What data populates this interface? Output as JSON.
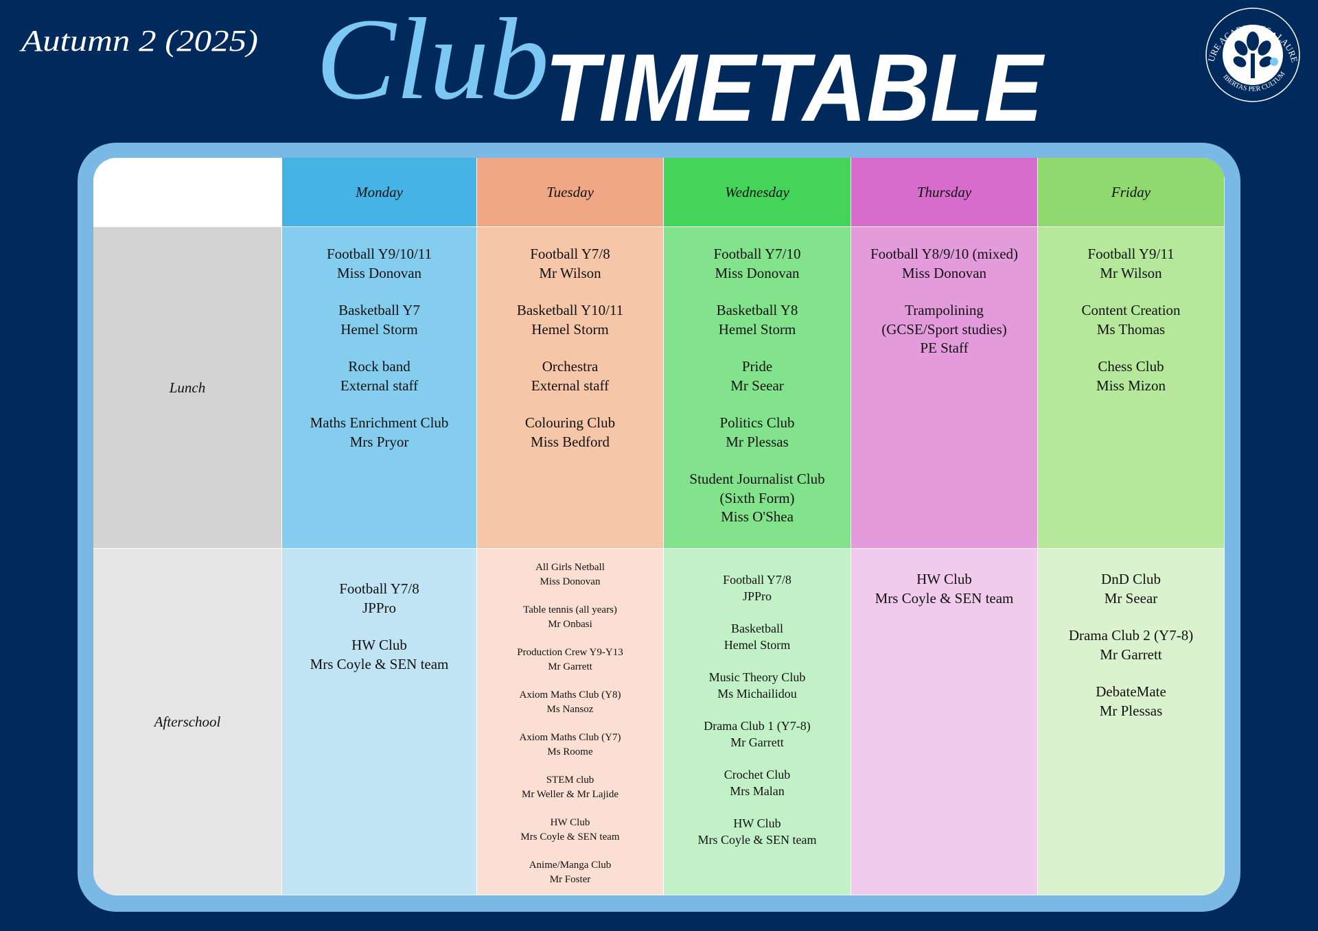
{
  "header": {
    "term": "Autumn 2 (2025)",
    "title_script": "Club",
    "title_bold": "TIMETABLE"
  },
  "logo": {
    "ring_text": "FUTURE ACADEMIES • LAUREATE",
    "motto": "LIBERTAS PER CULTUM"
  },
  "table": {
    "columns": [
      "Monday",
      "Tuesday",
      "Wednesday",
      "Thursday",
      "Friday"
    ],
    "rows": [
      {
        "label": "Lunch",
        "cells": [
          [
            [
              "Football Y9/10/11",
              "Miss Donovan"
            ],
            [
              "Basketball Y7",
              "Hemel Storm"
            ],
            [
              "Rock band",
              "External staff"
            ],
            [
              "Maths Enrichment Club",
              "Mrs Pryor"
            ]
          ],
          [
            [
              "Football Y7/8",
              "Mr Wilson"
            ],
            [
              "Basketball Y10/11",
              "Hemel Storm"
            ],
            [
              "Orchestra",
              "External staff"
            ],
            [
              "Colouring Club",
              "Miss Bedford"
            ]
          ],
          [
            [
              "Football Y7/10",
              "Miss Donovan"
            ],
            [
              "Basketball Y8",
              "Hemel Storm"
            ],
            [
              "Pride",
              "Mr Seear"
            ],
            [
              "Politics Club",
              "Mr Plessas"
            ],
            [
              "Student Journalist Club",
              "(Sixth Form)",
              "Miss O'Shea"
            ]
          ],
          [
            [
              "Football Y8/9/10 (mixed)",
              "Miss Donovan"
            ],
            [
              "Trampolining",
              "(GCSE/Sport studies)",
              "PE Staff"
            ]
          ],
          [
            [
              "Football Y9/11",
              "Mr Wilson"
            ],
            [
              "Content Creation",
              "Ms Thomas"
            ],
            [
              "Chess Club",
              "Miss Mizon"
            ]
          ]
        ]
      },
      {
        "label": "Afterschool",
        "cells": [
          [
            [
              "Football Y7/8",
              "JPPro"
            ],
            [
              "HW Club",
              "Mrs Coyle & SEN team"
            ]
          ],
          [
            [
              "All Girls Netball",
              "Miss Donovan"
            ],
            [
              "Table tennis (all years)",
              "Mr Onbasi"
            ],
            [
              "Production Crew Y9-Y13",
              "Mr Garrett"
            ],
            [
              "Axiom Maths Club (Y8)",
              "Ms Nansoz"
            ],
            [
              "Axiom Maths Club (Y7)",
              "Ms Roome"
            ],
            [
              "STEM club",
              "Mr Weller & Mr Lajide"
            ],
            [
              "HW Club",
              "Mrs Coyle & SEN team"
            ],
            [
              "Anime/Manga Club",
              "Mr Foster"
            ]
          ],
          [
            [
              "Football Y7/8",
              "JPPro"
            ],
            [
              "Basketball",
              "Hemel Storm"
            ],
            [
              "Music Theory Club",
              "Ms Michailidou"
            ],
            [
              "Drama Club 1 (Y7-8)",
              "Mr Garrett"
            ],
            [
              "Crochet Club",
              "Mrs Malan"
            ],
            [
              "HW Club",
              "Mrs Coyle & SEN team"
            ]
          ],
          [
            [
              "HW Club",
              "Mrs Coyle & SEN team"
            ]
          ],
          [
            [
              "DnD Club",
              "Mr Seear"
            ],
            [
              "Drama Club 2 (Y7-8)",
              "Mr Garrett"
            ],
            [
              "DebateMate",
              "Mr Plessas"
            ]
          ]
        ]
      }
    ]
  }
}
